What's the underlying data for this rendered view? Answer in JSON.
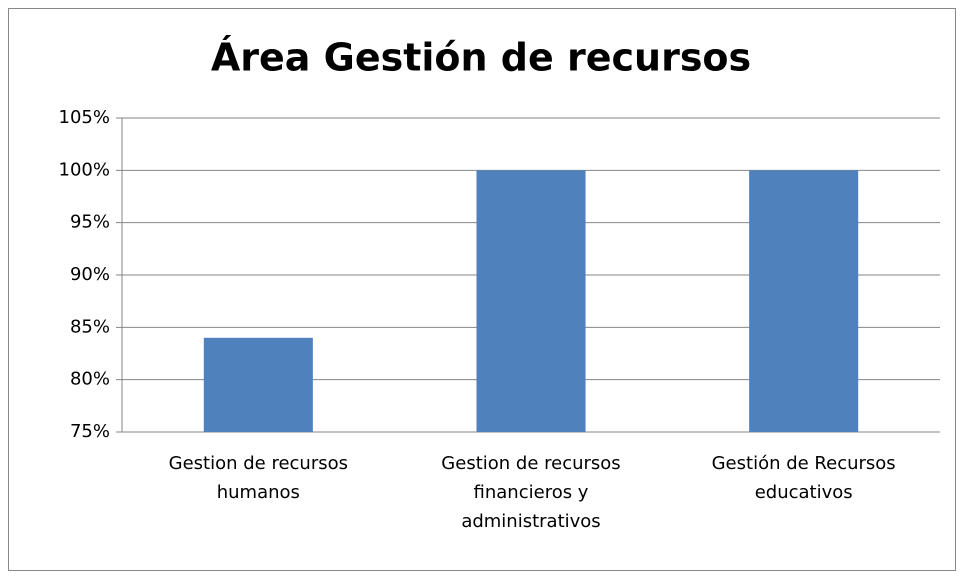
{
  "chart_data": {
    "type": "bar",
    "title": "Área Gestión de recursos",
    "categories": [
      "Gestion de recursos humanos",
      "Gestion de recursos financieros y administrativos",
      "Gestión de Recursos educativos"
    ],
    "values": [
      84,
      100,
      100
    ],
    "color": "#4f81bd",
    "ylim": [
      75,
      105
    ],
    "yticks": [
      {
        "value": 75,
        "label": "75%"
      },
      {
        "value": 80,
        "label": "80%"
      },
      {
        "value": 85,
        "label": "85%"
      },
      {
        "value": 90,
        "label": "90%"
      },
      {
        "value": 95,
        "label": "95%"
      },
      {
        "value": 100,
        "label": "100%"
      },
      {
        "value": 105,
        "label": "105%"
      }
    ],
    "grid": true
  }
}
